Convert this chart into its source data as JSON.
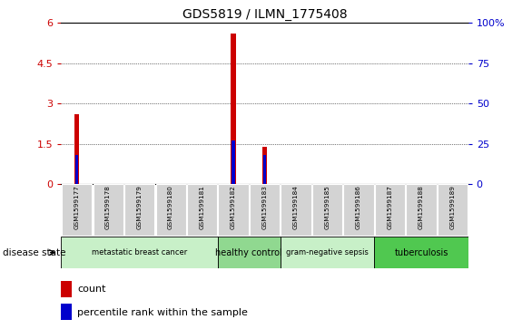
{
  "title": "GDS5819 / ILMN_1775408",
  "samples": [
    "GSM1599177",
    "GSM1599178",
    "GSM1599179",
    "GSM1599180",
    "GSM1599181",
    "GSM1599182",
    "GSM1599183",
    "GSM1599184",
    "GSM1599185",
    "GSM1599186",
    "GSM1599187",
    "GSM1599188",
    "GSM1599189"
  ],
  "red_values": [
    2.6,
    0,
    0,
    0,
    0,
    5.6,
    1.4,
    0,
    0,
    0,
    0,
    0,
    0
  ],
  "blue_values": [
    1.08,
    0,
    0,
    0,
    0,
    1.62,
    1.08,
    0,
    0,
    0,
    0,
    0,
    0
  ],
  "ylim_left": [
    0,
    6
  ],
  "ylim_right": [
    0,
    100
  ],
  "yticks_left": [
    0,
    1.5,
    3.0,
    4.5,
    6.0
  ],
  "ytick_labels_left": [
    "0",
    "1.5",
    "3",
    "4.5",
    "6"
  ],
  "yticks_right": [
    0,
    25,
    50,
    75,
    100
  ],
  "ytick_labels_right": [
    "0",
    "25",
    "50",
    "75",
    "100%"
  ],
  "groups": [
    {
      "label": "metastatic breast cancer",
      "start": 0,
      "end": 5,
      "color": "#c8f0c8"
    },
    {
      "label": "healthy control",
      "start": 5,
      "end": 7,
      "color": "#90d890"
    },
    {
      "label": "gram-negative sepsis",
      "start": 7,
      "end": 10,
      "color": "#c8f0c8"
    },
    {
      "label": "tuberculosis",
      "start": 10,
      "end": 13,
      "color": "#50c850"
    }
  ],
  "red_color": "#cc0000",
  "blue_color": "#0000cc",
  "legend_count_label": "count",
  "legend_pct_label": "percentile rank within the sample",
  "bg_color": "#ffffff",
  "tick_color_left": "#cc0000",
  "tick_color_right": "#0000cc",
  "disease_state_label": "disease state",
  "xticklabel_bg": "#d3d3d3",
  "red_bar_width": 0.15,
  "blue_bar_width": 0.1
}
